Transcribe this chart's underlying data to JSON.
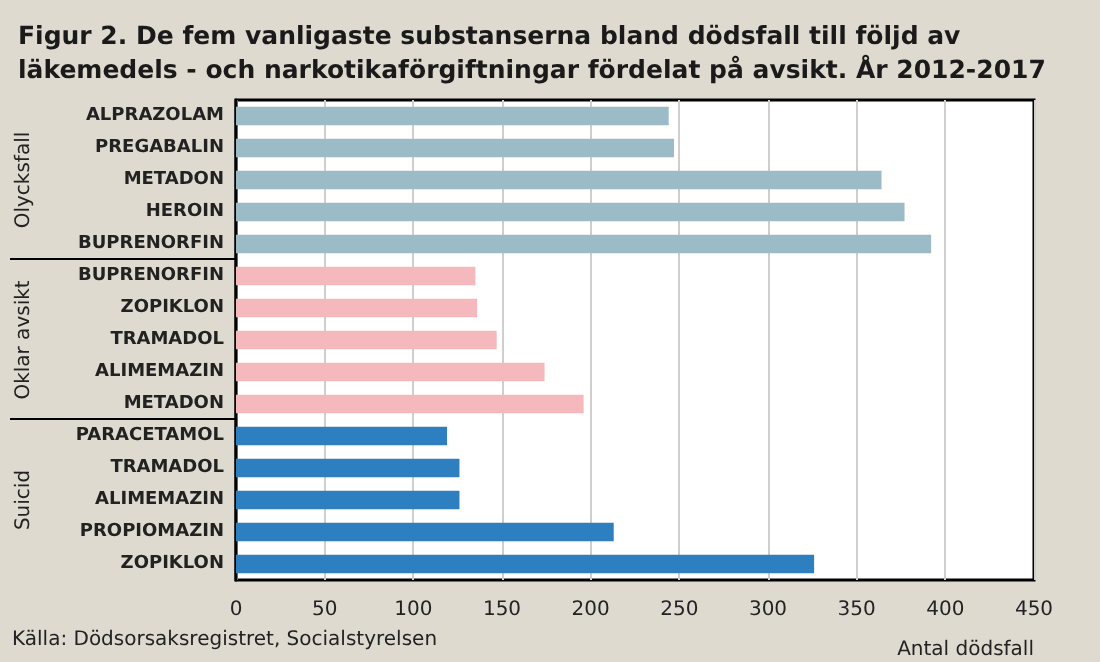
{
  "chart_data": {
    "type": "bar",
    "orientation": "horizontal",
    "title": "Figur 2. De fem vanligaste substanserna bland dödsfall till följd av läkemedels - och narkotikaförgiftningar fördelat på avsikt. År 2012-2017",
    "categories": [
      "ALPRAZOLAM",
      "PREGABALIN",
      "METADON",
      "HEROIN",
      "BUPRENORFIN",
      "BUPRENORFIN",
      "ZOPIKLON",
      "TRAMADOL",
      "ALIMEMAZIN",
      "METADON",
      "PARACETAMOL",
      "TRAMADOL",
      "ALIMEMAZIN",
      "PROPIOMAZIN",
      "ZOPIKLON"
    ],
    "series": [
      {
        "color": "#9bbcc7",
        "values": [
          244,
          247,
          364,
          377,
          392,
          null,
          null,
          null,
          null,
          null,
          null,
          null,
          null,
          null,
          null
        ]
      },
      {
        "color": "#f4b8bd",
        "values": [
          null,
          null,
          null,
          null,
          null,
          135,
          136,
          147,
          174,
          196,
          null,
          null,
          null,
          null,
          null
        ]
      },
      {
        "color": "#2e7fc0",
        "values": [
          null,
          null,
          null,
          null,
          null,
          null,
          null,
          null,
          null,
          null,
          119,
          126,
          126,
          213,
          326
        ]
      }
    ],
    "xlabel": "Antal dödsfall",
    "xlim": [
      0,
      450
    ],
    "xticks": [
      0,
      50,
      100,
      150,
      200,
      250,
      300,
      350,
      400,
      450
    ],
    "grid": "x",
    "annotations": [
      "Olycksfall",
      "Oklar avsikt",
      "Suicid",
      "Källa: Dödsorsaksregistret, Socialstyrelsen"
    ]
  }
}
